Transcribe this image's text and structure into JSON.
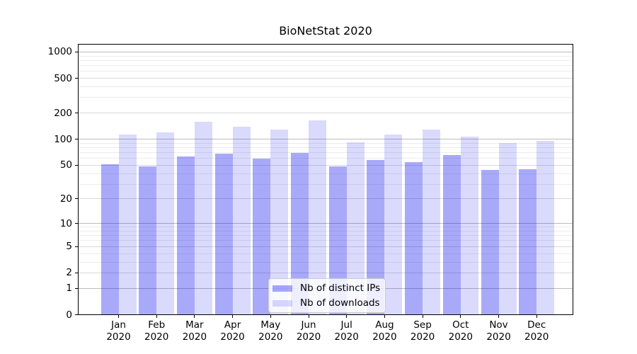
{
  "title": "BioNetStat 2020",
  "chart_data": {
    "type": "bar",
    "title": "BioNetStat 2020",
    "months": [
      "Jan",
      "Feb",
      "Mar",
      "Apr",
      "May",
      "Jun",
      "Jul",
      "Aug",
      "Sep",
      "Oct",
      "Nov",
      "Dec"
    ],
    "year_label": "2020",
    "series": [
      {
        "name": "Nb of distinct IPs",
        "color": "rgba(8,8,240,0.35)",
        "values": [
          51,
          48,
          63,
          68,
          60,
          70,
          48,
          57,
          54,
          66,
          44,
          45
        ]
      },
      {
        "name": "Nb of downloads",
        "color": "rgba(8,8,240,0.15)",
        "values": [
          113,
          120,
          160,
          138,
          129,
          165,
          92,
          114,
          130,
          106,
          90,
          95
        ]
      }
    ],
    "yscale": "log1p (position proportional to log10(1+y))",
    "ylim": [
      0,
      1236
    ],
    "y_tick_labels": [
      "0",
      "1",
      "2",
      "5",
      "10",
      "20",
      "50",
      "100",
      "200",
      "500",
      "1000"
    ],
    "y_ticks": [
      0,
      1,
      2,
      5,
      10,
      20,
      50,
      100,
      200,
      500,
      1000
    ],
    "y_decade_gridlines": [
      1,
      10,
      100,
      1000
    ],
    "y_labeled_minor_gridlines": [
      2,
      5,
      20,
      50,
      200,
      500
    ],
    "y_minor_gridlines": [
      3,
      4,
      6,
      7,
      8,
      9,
      30,
      40,
      60,
      70,
      80,
      90,
      300,
      400,
      600,
      700,
      800,
      900
    ],
    "grid": true,
    "legend_position": "lower center (inside axes)",
    "colors": {
      "decade_grid": "#bcbcbc",
      "labeled_grid": "#d9d9d9",
      "minor_grid": "#ececec",
      "spine": "#000000",
      "legend_border": "#cccccc"
    }
  }
}
